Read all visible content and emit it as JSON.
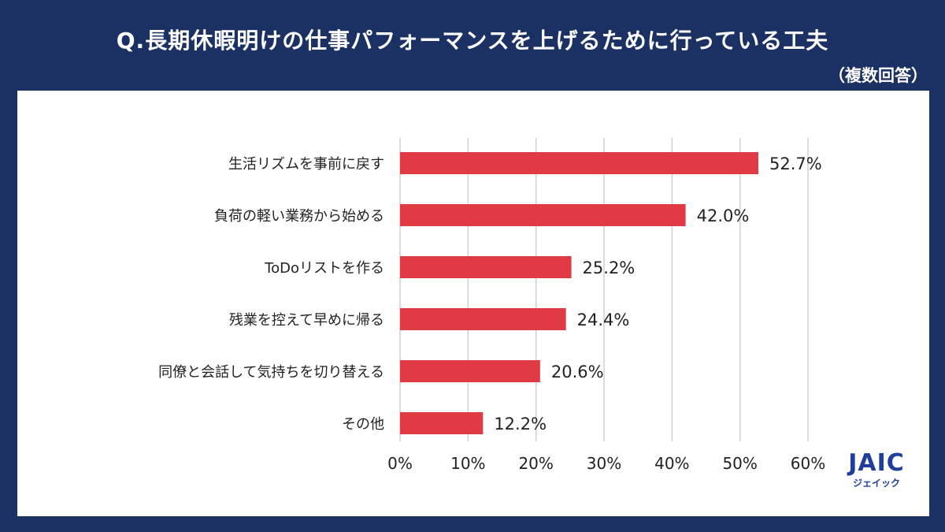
{
  "header": {
    "title": "Q.長期休暇明けの仕事パフォーマンスを上げるために行っている工夫",
    "subtitle": "（複数回答）"
  },
  "logo": {
    "mark": "JAIC",
    "sub": "ジェイック"
  },
  "colors": {
    "background": "#1c3163",
    "bar": "#e03a45",
    "grid": "#cfcfcf"
  },
  "chart_data": {
    "type": "bar",
    "orientation": "horizontal",
    "title": "Q.長期休暇明けの仕事パフォーマンスを上げるために行っている工夫",
    "categories": [
      "生活リズムを事前に戻す",
      "負荷の軽い業務から始める",
      "ToDoリストを作る",
      "残業を控えて早めに帰る",
      "同僚と会話して気持ちを切り替える",
      "その他"
    ],
    "values": [
      52.7,
      42.0,
      25.2,
      24.4,
      20.6,
      12.2
    ],
    "data_labels": [
      "52.7%",
      "42.0%",
      "25.2%",
      "24.4%",
      "20.6%",
      "12.2%"
    ],
    "xlim": [
      0,
      60
    ],
    "x_ticks": [
      0,
      10,
      20,
      30,
      40,
      50,
      60
    ],
    "x_tick_labels": [
      "0%",
      "10%",
      "20%",
      "30%",
      "40%",
      "50%",
      "60%"
    ],
    "grid": true,
    "xlabel": "",
    "ylabel": ""
  }
}
